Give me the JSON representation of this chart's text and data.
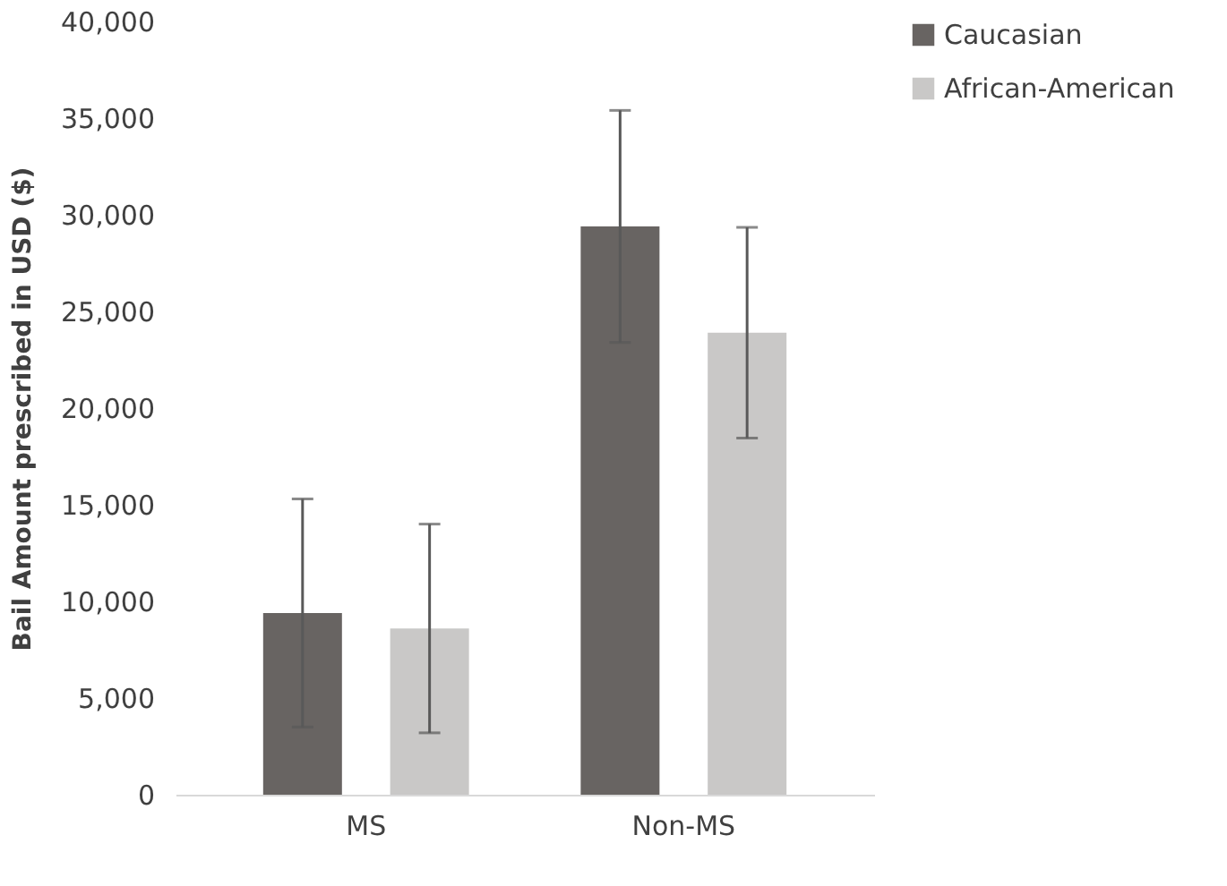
{
  "chart_data": {
    "type": "bar",
    "ylabel": "Bail Amount prescribed in USD ($)",
    "categories": [
      "MS",
      "Non-MS"
    ],
    "series": [
      {
        "name": "Caucasian",
        "color": "#686462",
        "values": [
          9400,
          29400
        ],
        "errors": [
          5900,
          6000
        ]
      },
      {
        "name": "African-American",
        "color": "#c9c8c7",
        "values": [
          8600,
          23900
        ],
        "errors": [
          5400,
          5450
        ]
      }
    ],
    "ylim": [
      0,
      40000
    ],
    "yticks": [
      0,
      {
        "value": 5000,
        "label": "5,000"
      },
      {
        "value": 10000,
        "label": "10,000"
      },
      {
        "value": 15000,
        "label": "15,000"
      },
      {
        "value": 20000,
        "label": "20,000"
      },
      {
        "value": 25000,
        "label": "25,000"
      },
      {
        "value": 30000,
        "label": "30,000"
      },
      {
        "value": 35000,
        "label": "35,000"
      },
      {
        "value": 40000,
        "label": "40,000"
      }
    ],
    "grid": false,
    "legend": "right"
  }
}
